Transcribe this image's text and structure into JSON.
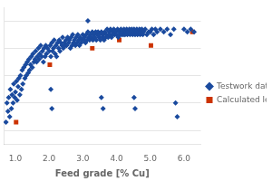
{
  "chart_data": {
    "type": "scatter",
    "xlabel": "Feed grade [% Cu]",
    "xlim": [
      0.65,
      6.5
    ],
    "ylim": [
      55,
      105
    ],
    "xticks": [
      {
        "value": 1.0,
        "label": "1.0"
      },
      {
        "value": 2.0,
        "label": "2.0"
      },
      {
        "value": 3.0,
        "label": "3.0"
      },
      {
        "value": 4.0,
        "label": "4.0"
      },
      {
        "value": 5.0,
        "label": "5.0"
      },
      {
        "value": 6.0,
        "label": "6.0"
      }
    ],
    "yticks": [
      60,
      70,
      80,
      90,
      100
    ],
    "tick_labels": "x",
    "grid": true,
    "legend": "right",
    "series": [
      {
        "name": "Testwork data",
        "color": "#1a4a9e",
        "marker": "diamond",
        "values": [
          [
            0.72,
            63
          ],
          [
            0.75,
            70
          ],
          [
            0.78,
            67
          ],
          [
            0.8,
            72
          ],
          [
            0.83,
            65
          ],
          [
            0.85,
            75
          ],
          [
            0.88,
            68
          ],
          [
            0.9,
            73
          ],
          [
            0.93,
            70
          ],
          [
            0.95,
            77
          ],
          [
            0.98,
            72
          ],
          [
            1.0,
            74
          ],
          [
            1.03,
            78
          ],
          [
            1.05,
            71
          ],
          [
            1.08,
            76
          ],
          [
            1.1,
            79
          ],
          [
            1.13,
            73
          ],
          [
            1.15,
            80
          ],
          [
            1.18,
            75
          ],
          [
            1.2,
            82
          ],
          [
            1.22,
            77
          ],
          [
            1.25,
            83
          ],
          [
            1.28,
            79
          ],
          [
            1.3,
            84
          ],
          [
            1.32,
            80
          ],
          [
            1.35,
            85
          ],
          [
            1.38,
            81
          ],
          [
            1.4,
            86
          ],
          [
            1.42,
            82
          ],
          [
            1.45,
            84
          ],
          [
            1.47,
            87
          ],
          [
            1.5,
            83
          ],
          [
            1.52,
            88
          ],
          [
            1.55,
            85
          ],
          [
            1.58,
            86
          ],
          [
            1.6,
            89
          ],
          [
            1.63,
            85
          ],
          [
            1.65,
            87
          ],
          [
            1.68,
            90
          ],
          [
            1.7,
            86
          ],
          [
            1.72,
            88
          ],
          [
            1.75,
            91
          ],
          [
            1.78,
            87
          ],
          [
            1.8,
            89
          ],
          [
            1.83,
            85
          ],
          [
            1.85,
            90
          ],
          [
            1.88,
            87
          ],
          [
            1.9,
            91
          ],
          [
            1.92,
            88
          ],
          [
            1.95,
            90
          ],
          [
            2.0,
            89
          ],
          [
            2.03,
            91
          ],
          [
            2.05,
            87
          ],
          [
            2.08,
            92
          ],
          [
            2.1,
            89
          ],
          [
            2.13,
            90
          ],
          [
            2.15,
            93
          ],
          [
            2.18,
            88
          ],
          [
            2.2,
            91
          ],
          [
            2.22,
            87
          ],
          [
            2.25,
            92
          ],
          [
            2.28,
            90
          ],
          [
            2.3,
            93
          ],
          [
            2.32,
            89
          ],
          [
            2.35,
            92
          ],
          [
            2.38,
            91
          ],
          [
            2.4,
            94
          ],
          [
            2.42,
            90
          ],
          [
            2.45,
            92
          ],
          [
            2.48,
            91
          ],
          [
            2.5,
            93
          ],
          [
            2.52,
            91
          ],
          [
            2.55,
            94
          ],
          [
            2.58,
            92
          ],
          [
            2.6,
            93
          ],
          [
            2.63,
            90
          ],
          [
            2.65,
            94
          ],
          [
            2.68,
            91
          ],
          [
            2.7,
            95
          ],
          [
            2.72,
            92
          ],
          [
            2.75,
            93
          ],
          [
            2.78,
            91
          ],
          [
            2.8,
            94
          ],
          [
            2.83,
            92
          ],
          [
            2.85,
            95
          ],
          [
            2.88,
            93
          ],
          [
            2.9,
            91
          ],
          [
            2.92,
            94
          ],
          [
            2.95,
            92
          ],
          [
            2.98,
            93
          ],
          [
            3.0,
            95
          ],
          [
            3.03,
            93
          ],
          [
            3.05,
            94
          ],
          [
            3.08,
            92
          ],
          [
            3.1,
            95
          ],
          [
            3.13,
            93
          ],
          [
            3.15,
            96
          ],
          [
            3.18,
            94
          ],
          [
            3.2,
            93
          ],
          [
            3.22,
            95
          ],
          [
            3.25,
            94
          ],
          [
            3.28,
            96
          ],
          [
            3.3,
            93
          ],
          [
            3.32,
            95
          ],
          [
            3.35,
            94
          ],
          [
            3.38,
            96
          ],
          [
            3.4,
            93
          ],
          [
            3.42,
            95
          ],
          [
            3.45,
            96
          ],
          [
            3.48,
            94
          ],
          [
            3.5,
            95
          ],
          [
            3.52,
            93
          ],
          [
            3.55,
            96
          ],
          [
            3.58,
            94
          ],
          [
            3.6,
            95
          ],
          [
            3.63,
            93
          ],
          [
            3.65,
            96
          ],
          [
            3.68,
            94
          ],
          [
            3.7,
            95
          ],
          [
            3.72,
            97
          ],
          [
            3.75,
            94
          ],
          [
            3.78,
            96
          ],
          [
            3.8,
            95
          ],
          [
            3.82,
            97
          ],
          [
            3.85,
            94
          ],
          [
            3.88,
            96
          ],
          [
            3.9,
            95
          ],
          [
            3.92,
            97
          ],
          [
            3.95,
            95
          ],
          [
            3.98,
            96
          ],
          [
            4.0,
            95
          ],
          [
            4.03,
            97
          ],
          [
            4.05,
            94
          ],
          [
            4.08,
            96
          ],
          [
            4.1,
            95
          ],
          [
            4.13,
            97
          ],
          [
            4.15,
            95
          ],
          [
            4.18,
            96
          ],
          [
            4.2,
            95
          ],
          [
            4.22,
            97
          ],
          [
            4.25,
            95
          ],
          [
            4.28,
            96
          ],
          [
            4.3,
            97
          ],
          [
            4.32,
            95
          ],
          [
            4.35,
            96
          ],
          [
            4.38,
            97
          ],
          [
            4.4,
            95
          ],
          [
            4.43,
            96
          ],
          [
            4.45,
            97
          ],
          [
            4.48,
            95
          ],
          [
            4.5,
            96
          ],
          [
            4.52,
            97
          ],
          [
            4.55,
            95
          ],
          [
            4.58,
            96
          ],
          [
            4.6,
            97
          ],
          [
            4.62,
            95
          ],
          [
            4.65,
            96
          ],
          [
            4.68,
            97
          ],
          [
            4.7,
            95
          ],
          [
            4.72,
            96
          ],
          [
            4.75,
            97
          ],
          [
            4.78,
            95
          ],
          [
            4.8,
            96
          ],
          [
            4.85,
            97
          ],
          [
            4.9,
            95
          ],
          [
            4.95,
            96
          ],
          [
            5.0,
            96
          ],
          [
            5.05,
            97
          ],
          [
            5.1,
            95
          ],
          [
            5.15,
            97
          ],
          [
            5.2,
            96
          ],
          [
            5.3,
            97
          ],
          [
            5.4,
            96
          ],
          [
            5.5,
            97
          ],
          [
            5.6,
            95
          ],
          [
            5.7,
            97
          ],
          [
            6.0,
            97
          ],
          [
            6.1,
            96
          ],
          [
            6.2,
            97
          ],
          [
            6.3,
            96
          ],
          [
            3.15,
            100
          ],
          [
            2.05,
            75
          ],
          [
            2.08,
            68
          ],
          [
            3.55,
            72
          ],
          [
            3.6,
            68
          ],
          [
            4.52,
            72
          ],
          [
            4.55,
            68
          ],
          [
            5.75,
            70
          ],
          [
            5.8,
            65
          ]
        ]
      },
      {
        "name": "Calculated le...",
        "color": "#cc3300",
        "marker": "square",
        "values": [
          [
            1.02,
            63
          ],
          [
            2.02,
            84
          ],
          [
            3.28,
            90
          ],
          [
            4.08,
            93
          ],
          [
            5.02,
            91
          ],
          [
            6.25,
            96
          ]
        ]
      }
    ]
  }
}
